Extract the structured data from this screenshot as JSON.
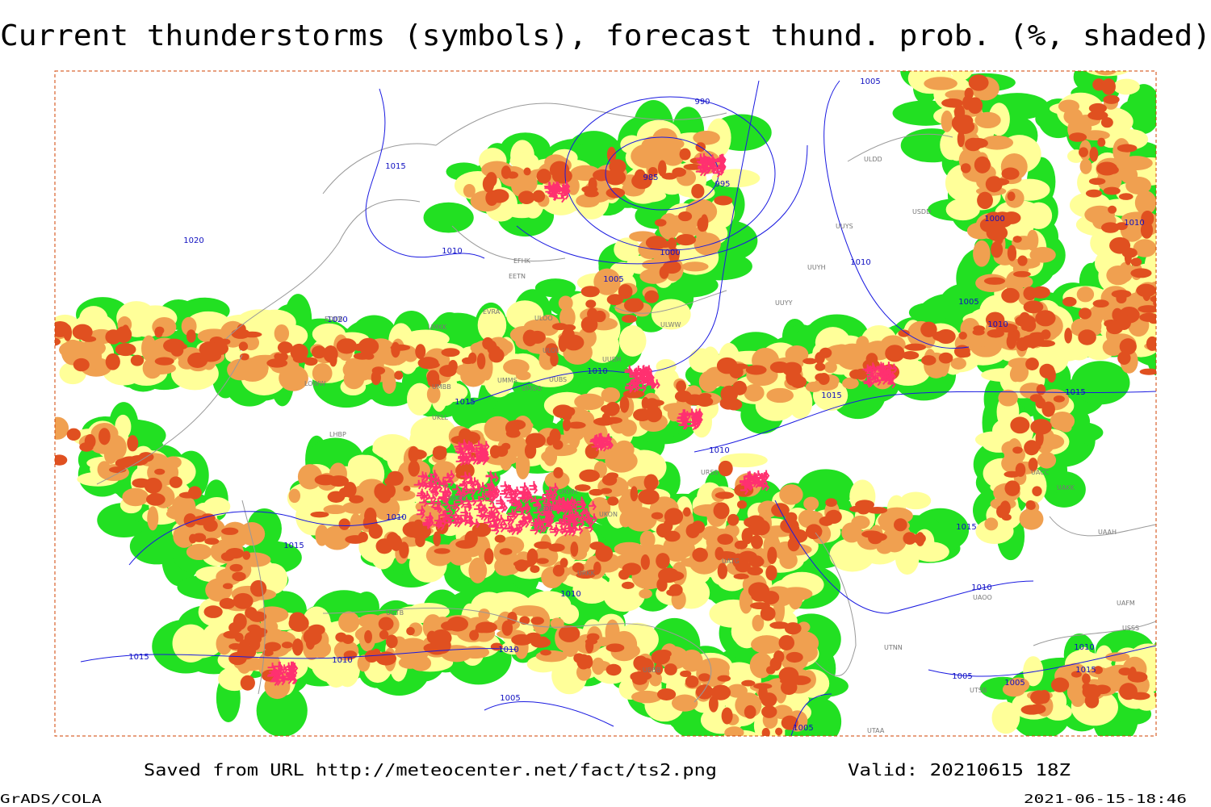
{
  "header": {
    "title": "Current thunderstorms (symbols), forecast thund. prob. (%, shaded)"
  },
  "map": {
    "isobar_labels": [
      1015,
      985,
      995,
      990,
      1005,
      1000,
      1010,
      1020,
      1010,
      1000,
      1005,
      1010,
      1005,
      1010,
      1020,
      1010,
      1015,
      1015,
      1015,
      1010,
      1010,
      1015,
      1015,
      1010,
      1010,
      1010,
      1015,
      1010,
      1005,
      1010,
      1015,
      1005,
      1005,
      1005
    ],
    "stations": [
      "ULDD",
      "USDD",
      "UUYS",
      "UUYH",
      "UUYY",
      "ULWW",
      "EFHK",
      "EETN",
      "EVRA",
      "ULOO",
      "UMKK",
      "ULOL",
      "UUEM",
      "UMMS",
      "UMOO",
      "UUBS",
      "UMBB",
      "EDDB",
      "LOWW",
      "LHBP",
      "UKLL",
      "UKKK",
      "UKDE",
      "UKON",
      "UKHH",
      "URSS",
      "UATG",
      "URKK",
      "UBBB",
      "UGTB",
      "UTNN",
      "UTAA",
      "UTSB",
      "UACC",
      "UAKK",
      "UAAH",
      "UAFM",
      "UAOO",
      "USSS"
    ]
  },
  "footer": {
    "source": "Saved from URL http://meteocenter.net/fact/ts2.png",
    "valid": "Valid: 20210615 18Z",
    "software": "GrADS/COLA",
    "timestamp": "2021-06-15-18:46"
  }
}
